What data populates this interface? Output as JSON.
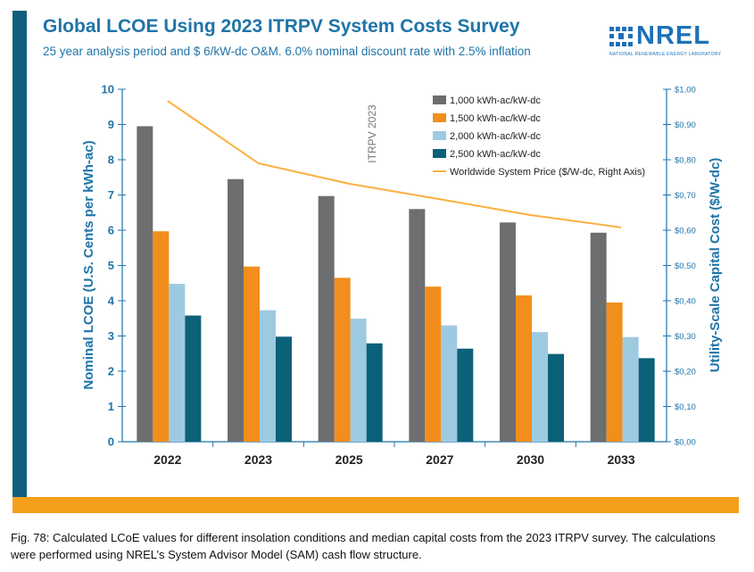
{
  "header": {
    "title": "Global LCOE Using 2023 ITRPV System Costs Survey",
    "subtitle": "25 year analysis period and $ 6/kW-dc O&M. 6.0% nominal discount rate with 2.5% inflation"
  },
  "logo": {
    "name": "NREL",
    "tagline": "NATIONAL RENEWABLE ENERGY LABORATORY"
  },
  "caption": "Fig. 78: Calculated LCoE values for different insolation conditions and median capital costs from the 2023 ITRPV survey.  The calculations were performed using NREL’s System Advisor Model (SAM) cash flow structure.",
  "colors": {
    "title": "#1f74a8",
    "accent_bar": "#0f5f7c",
    "bottom_bar": "#f4a01b"
  },
  "chart_data": {
    "type": "bar",
    "title": "",
    "xlabel": "",
    "ylabel": "Nominal LCOE (U.S. Cents per kWh-ac)",
    "y2label": "Utility-Scale Capital Cost ($/W-dc)",
    "ylim": [
      0,
      10
    ],
    "y2lim": [
      0,
      1.0
    ],
    "yticks": [
      "0",
      "1",
      "2",
      "3",
      "4",
      "5",
      "6",
      "7",
      "8",
      "9",
      "10"
    ],
    "y2ticks": [
      "$0,00",
      "$0,10",
      "$0,20",
      "$0,30",
      "$0,40",
      "$0,50",
      "$0,60",
      "$0,70",
      "$0,80",
      "$0,90",
      "$1,00"
    ],
    "categories": [
      "2022",
      "2023",
      "2025",
      "2027",
      "2030",
      "2033"
    ],
    "series": [
      {
        "name": "1,000 kWh-ac/kW-dc",
        "color": "#6d6e70",
        "values": [
          8.95,
          7.45,
          6.97,
          6.6,
          6.22,
          5.93
        ]
      },
      {
        "name": "1,500 kWh-ac/kW-dc",
        "color": "#f28e1c",
        "values": [
          5.97,
          4.97,
          4.65,
          4.4,
          4.15,
          3.95
        ]
      },
      {
        "name": "2,000 kWh-ac/kW-dc",
        "color": "#9ecae1",
        "values": [
          4.48,
          3.73,
          3.49,
          3.3,
          3.11,
          2.97
        ]
      },
      {
        "name": "2,500 kWh-ac/kW-dc",
        "color": "#0b6178",
        "values": [
          3.58,
          2.98,
          2.79,
          2.64,
          2.49,
          2.37
        ]
      },
      {
        "name": "Worldwide System Price ($/W-dc, Right Axis)",
        "color": "#fbb040",
        "type": "line",
        "axis": "right",
        "values": [
          0.967,
          0.79,
          0.732,
          0.688,
          0.643,
          0.608
        ]
      }
    ],
    "annotation": "ITRPV 2023",
    "legend_position": "top-right",
    "grid": false
  }
}
